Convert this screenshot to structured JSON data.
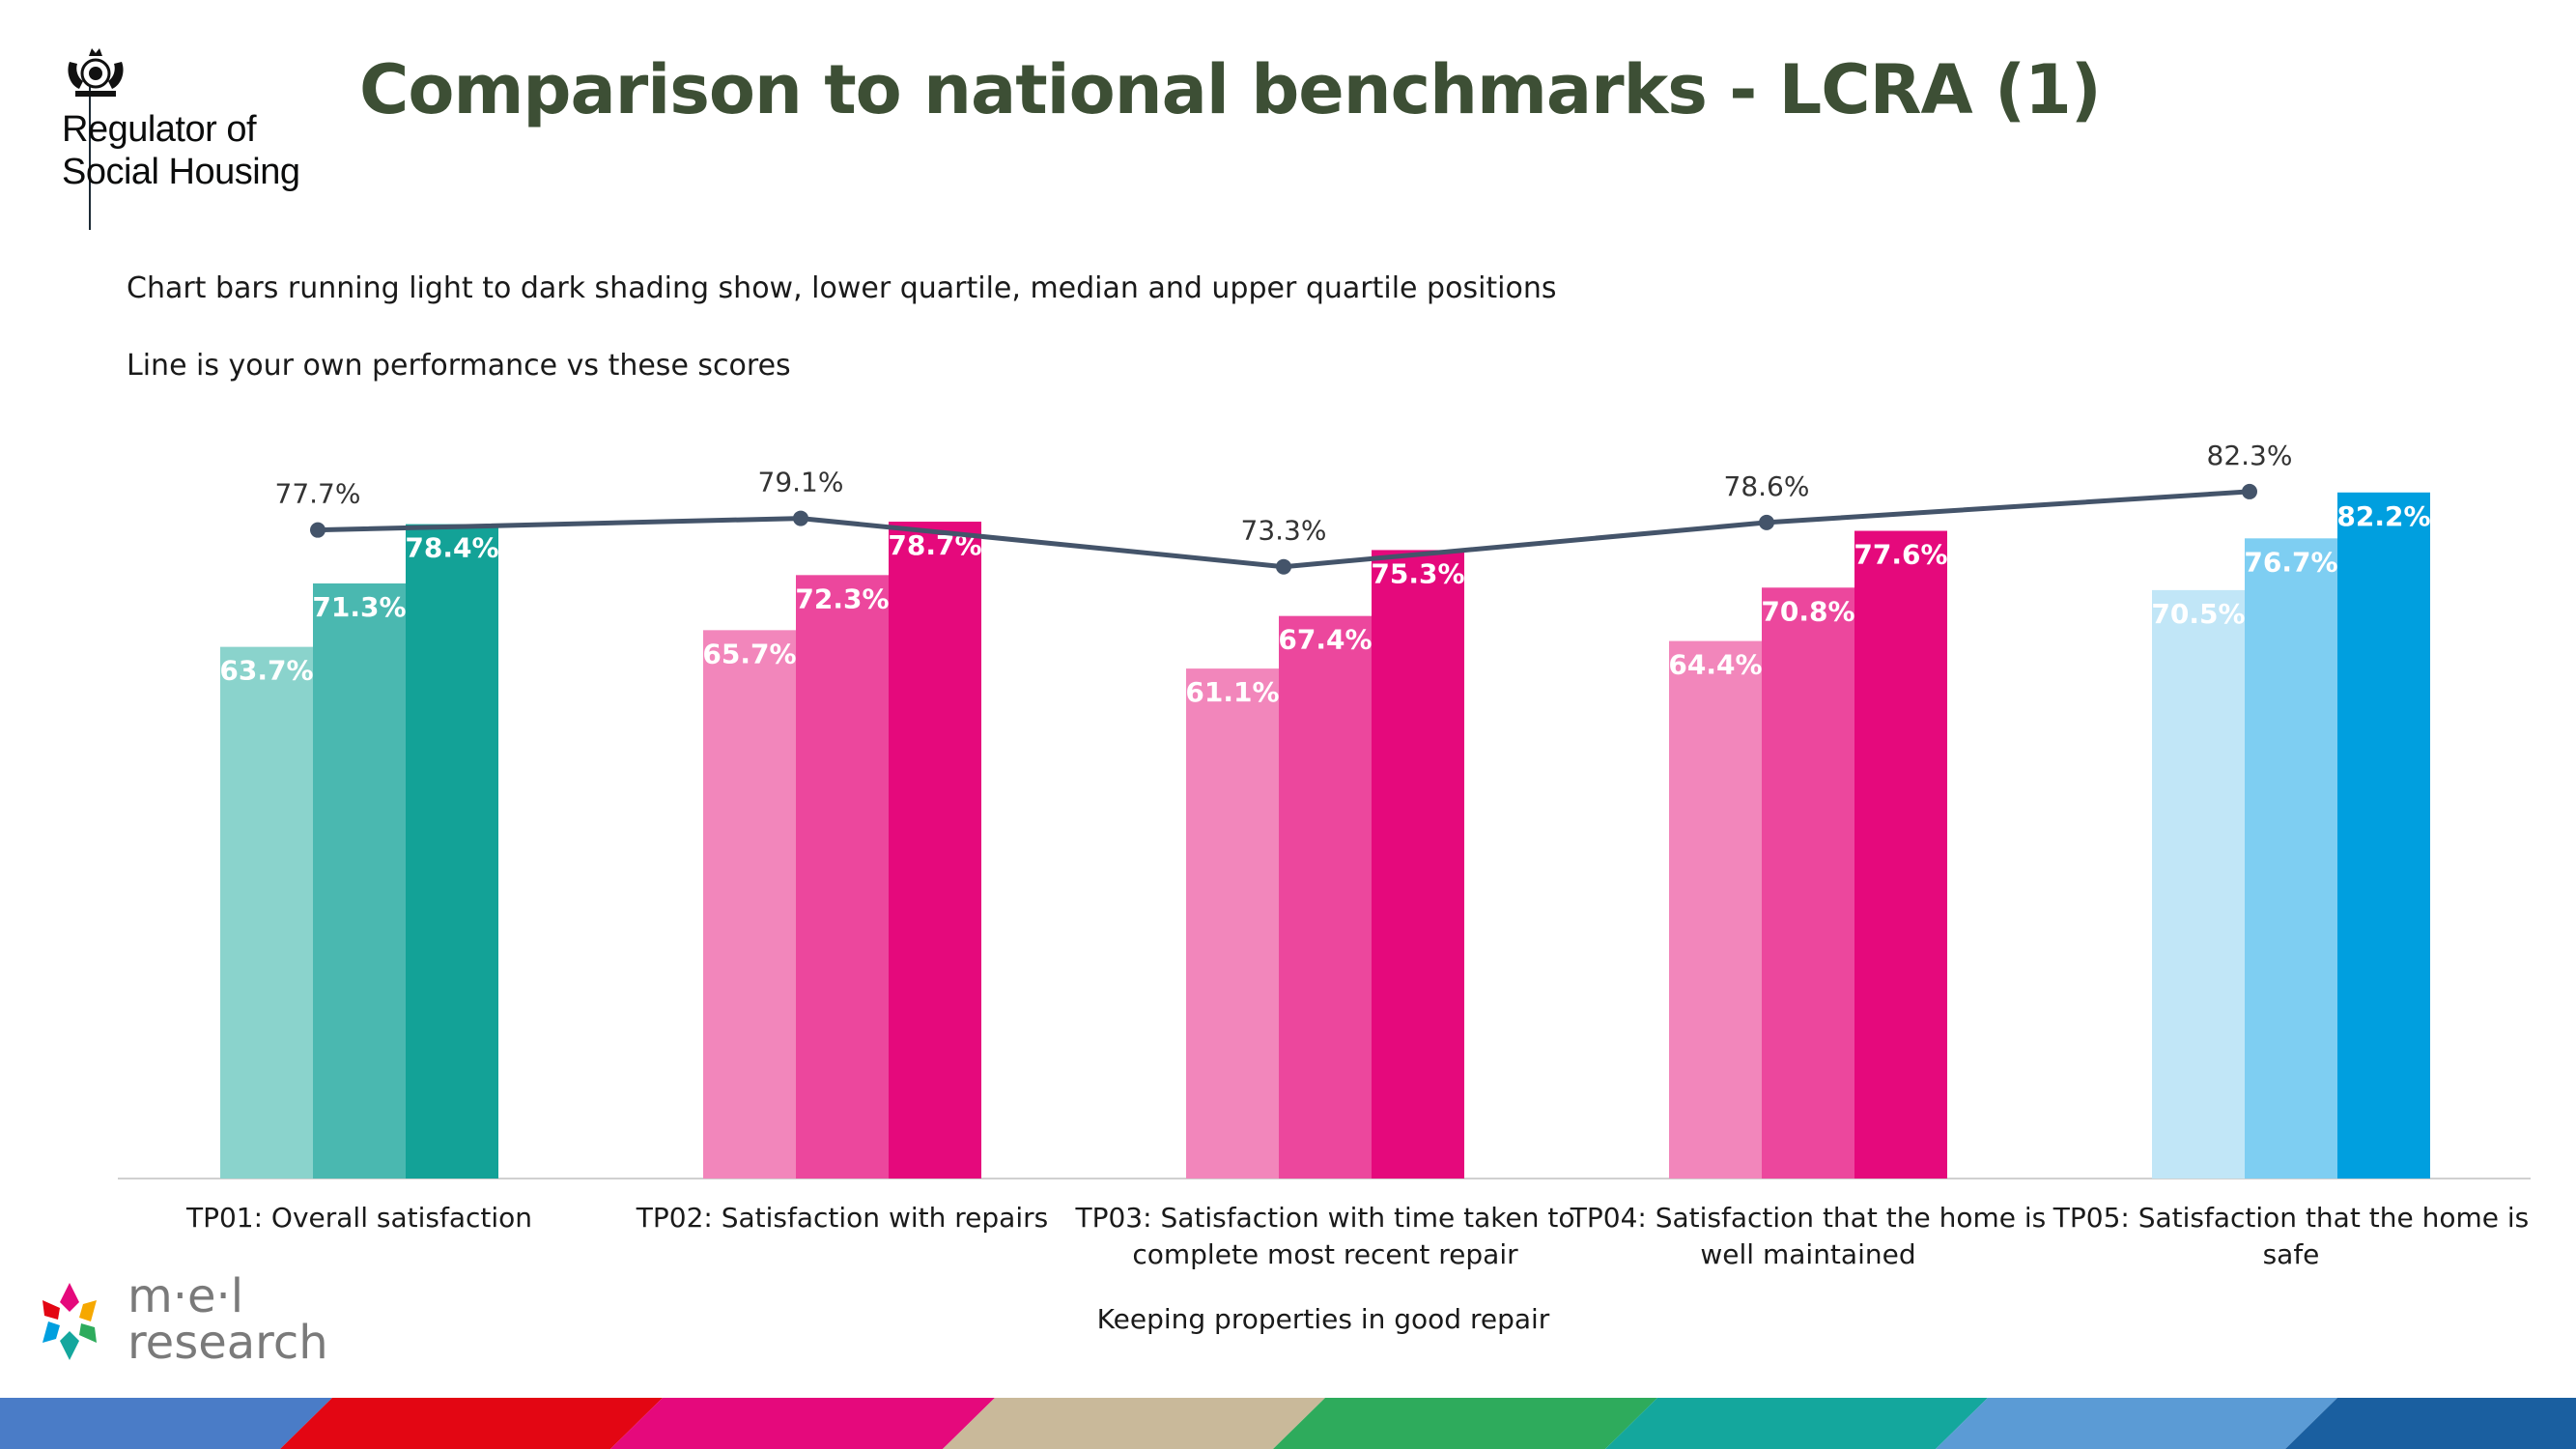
{
  "header": {
    "title": "Comparison to national benchmarks  - LCRA (1)",
    "org_line1": "Regulator of",
    "org_line2": "Social Housing"
  },
  "notes": {
    "line1": "Chart bars running light to dark shading show, lower quartile, median and upper quartile positions",
    "line2": "Line is your own performance vs these scores"
  },
  "footer": {
    "brand_line1": "m·e·l",
    "brand_line2": "research"
  },
  "chart_data": {
    "type": "bar",
    "xlabel": "Keeping properties in good repair",
    "ylim": [
      0,
      100
    ],
    "grid": false,
    "categories": [
      [
        "TP01: Overall satisfaction"
      ],
      [
        "TP02: Satisfaction with repairs"
      ],
      [
        "TP03: Satisfaction with time taken to",
        "complete most recent repair"
      ],
      [
        "TP04: Satisfaction that the home is",
        "well maintained"
      ],
      [
        "TP05: Satisfaction that the home is",
        "safe"
      ]
    ],
    "series": [
      {
        "values": [
          63.7,
          65.7,
          61.1,
          64.4,
          70.5
        ],
        "labels": [
          "63.7%",
          "65.7%",
          "61.1%",
          "64.4%",
          "70.5%"
        ]
      },
      {
        "values": [
          71.3,
          72.3,
          67.4,
          70.8,
          76.7
        ],
        "labels": [
          "71.3%",
          "72.3%",
          "67.4%",
          "70.8%",
          "76.7%"
        ]
      },
      {
        "values": [
          78.4,
          78.7,
          75.3,
          77.6,
          82.2
        ],
        "labels": [
          "78.4%",
          "78.7%",
          "75.3%",
          "77.6%",
          "82.2%"
        ]
      }
    ],
    "line": {
      "values": [
        77.7,
        79.1,
        73.3,
        78.6,
        82.3
      ],
      "labels": [
        "77.7%",
        "79.1%",
        "73.3%",
        "78.6%",
        "82.3%"
      ],
      "color": "#44546a"
    },
    "bar_colors": [
      [
        "#8ad3cc",
        "#4ab8b0",
        "#13a297"
      ],
      [
        "#f286bb",
        "#ec479d",
        "#e5097c"
      ],
      [
        "#f286bb",
        "#ec479d",
        "#e5097c"
      ],
      [
        "#f286bb",
        "#ec479d",
        "#e5097c"
      ],
      [
        "#c1e6f7",
        "#7ecef2",
        "#009fdf"
      ]
    ]
  },
  "colors": {
    "title": "#3d4f35",
    "stripe": [
      "#4a7cc7",
      "#e30613",
      "#e5097c",
      "#c9b99a",
      "#2eab5c",
      "#14a79d",
      "#5b9bd5",
      "#1a5fa0"
    ]
  }
}
